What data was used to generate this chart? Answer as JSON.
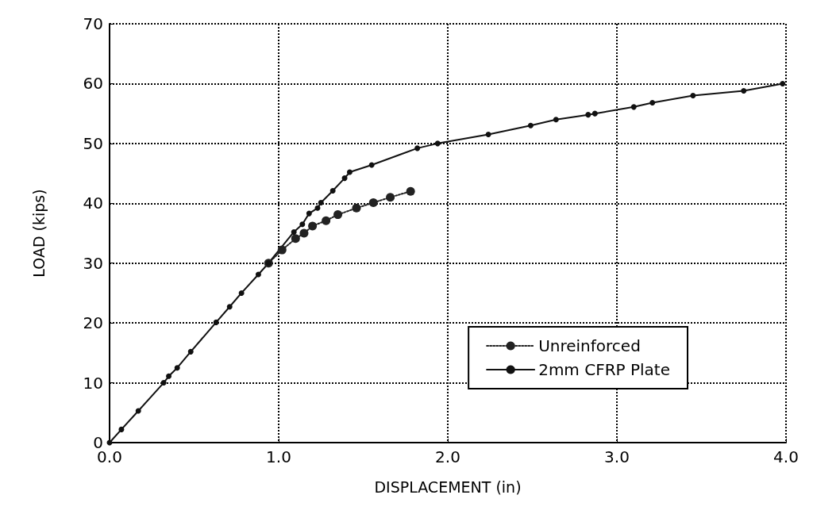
{
  "chart_data": {
    "type": "line",
    "xlabel": "DISPLACEMENT (in)",
    "ylabel": "LOAD (kips)",
    "xlim": [
      0,
      4
    ],
    "xticks": [
      {
        "value": 0,
        "label": "0.0"
      },
      {
        "value": 1,
        "label": "1.0"
      },
      {
        "value": 2,
        "label": "2.0"
      },
      {
        "value": 3,
        "label": "3.0"
      },
      {
        "value": 4,
        "label": "4.0"
      }
    ],
    "ylim": [
      0,
      70
    ],
    "yticks": [
      0,
      10,
      20,
      30,
      40,
      50,
      60,
      70
    ],
    "grid": true,
    "legend": "bottom right",
    "marker": "circle",
    "series": [
      {
        "name": "Unreinforced",
        "color": "#222222",
        "line_style": "dotted",
        "x": [
          0.94,
          1.02,
          1.1,
          1.15,
          1.2,
          1.28,
          1.35,
          1.46,
          1.56,
          1.66,
          1.78
        ],
        "values": [
          30.0,
          32.2,
          34.1,
          35.0,
          36.2,
          37.1,
          38.1,
          39.2,
          40.1,
          41.0,
          42.0
        ]
      },
      {
        "name": "2mm CFRP Plate",
        "color": "#111111",
        "line_style": "solid",
        "x": [
          0,
          0.07,
          0.17,
          0.32,
          0.35,
          0.4,
          0.48,
          0.63,
          0.71,
          0.78,
          0.88,
          0.94,
          1.09,
          1.14,
          1.18,
          1.23,
          1.25,
          1.32,
          1.39,
          1.42,
          1.55,
          1.82,
          1.94,
          2.24,
          2.49,
          2.64,
          2.83,
          2.87,
          3.1,
          3.21,
          3.45,
          3.75,
          3.98
        ],
        "values": [
          0,
          2.2,
          5.3,
          10.0,
          11.1,
          12.5,
          15.2,
          20.1,
          22.7,
          25.0,
          28.1,
          30.0,
          35.2,
          36.5,
          38.3,
          39.2,
          40.1,
          42.1,
          44.2,
          45.2,
          46.4,
          49.2,
          50.0,
          51.5,
          53.0,
          54.0,
          54.8,
          55.0,
          56.1,
          56.8,
          58.0,
          58.8,
          60.0
        ]
      }
    ]
  }
}
